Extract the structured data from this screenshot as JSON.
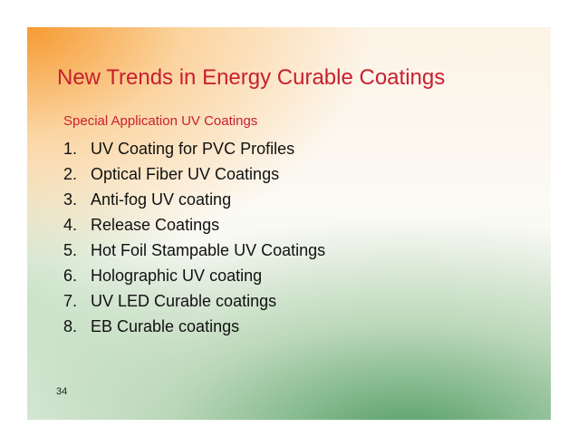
{
  "title": "New Trends in Energy Curable Coatings",
  "subtitle": "Special Application UV Coatings",
  "items": [
    {
      "marker": "1.",
      "text": "UV Coating for PVC Profiles"
    },
    {
      "marker": "2.",
      "text": "Optical Fiber UV Coatings"
    },
    {
      "marker": "3.",
      "text": "Anti-fog UV coating"
    },
    {
      "marker": "4.",
      "text": "Release Coatings"
    },
    {
      "marker": "5.",
      "text": "Hot Foil Stampable UV Coatings"
    },
    {
      "marker": "6.",
      "text": "Holographic UV coating"
    },
    {
      "marker": "7.",
      "text": "UV LED Curable coatings"
    },
    {
      "marker": "8.",
      "text": "EB Curable coatings"
    }
  ],
  "page_number": "34"
}
